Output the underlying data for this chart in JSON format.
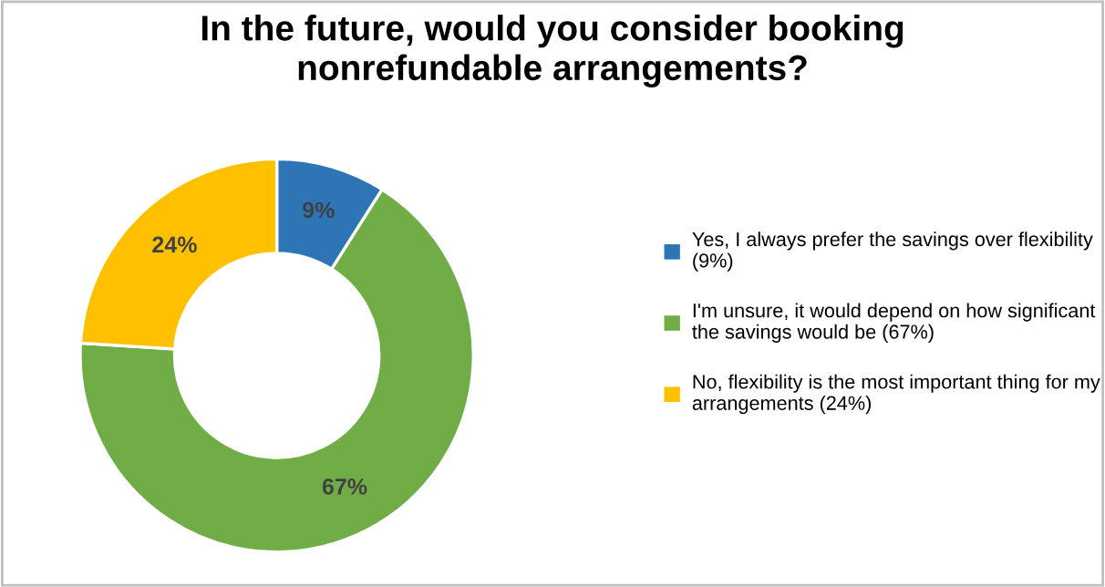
{
  "chart_data": {
    "type": "donut",
    "title": "In the future, would you consider booking\nnonrefundable arrangements?",
    "categories": [
      "Yes, I always prefer the savings over flexibility\n(9%)",
      "I'm unsure, it would depend on how significant\nthe savings would be (67%)",
      "No, flexibility is the most important thing for my\narrangements (24%)"
    ],
    "values": [
      9,
      67,
      24
    ],
    "colors": [
      "#2e75b6",
      "#70ad47",
      "#ffc000"
    ],
    "value_labels": [
      "9%",
      "67%",
      "24%"
    ],
    "legend": "right"
  }
}
